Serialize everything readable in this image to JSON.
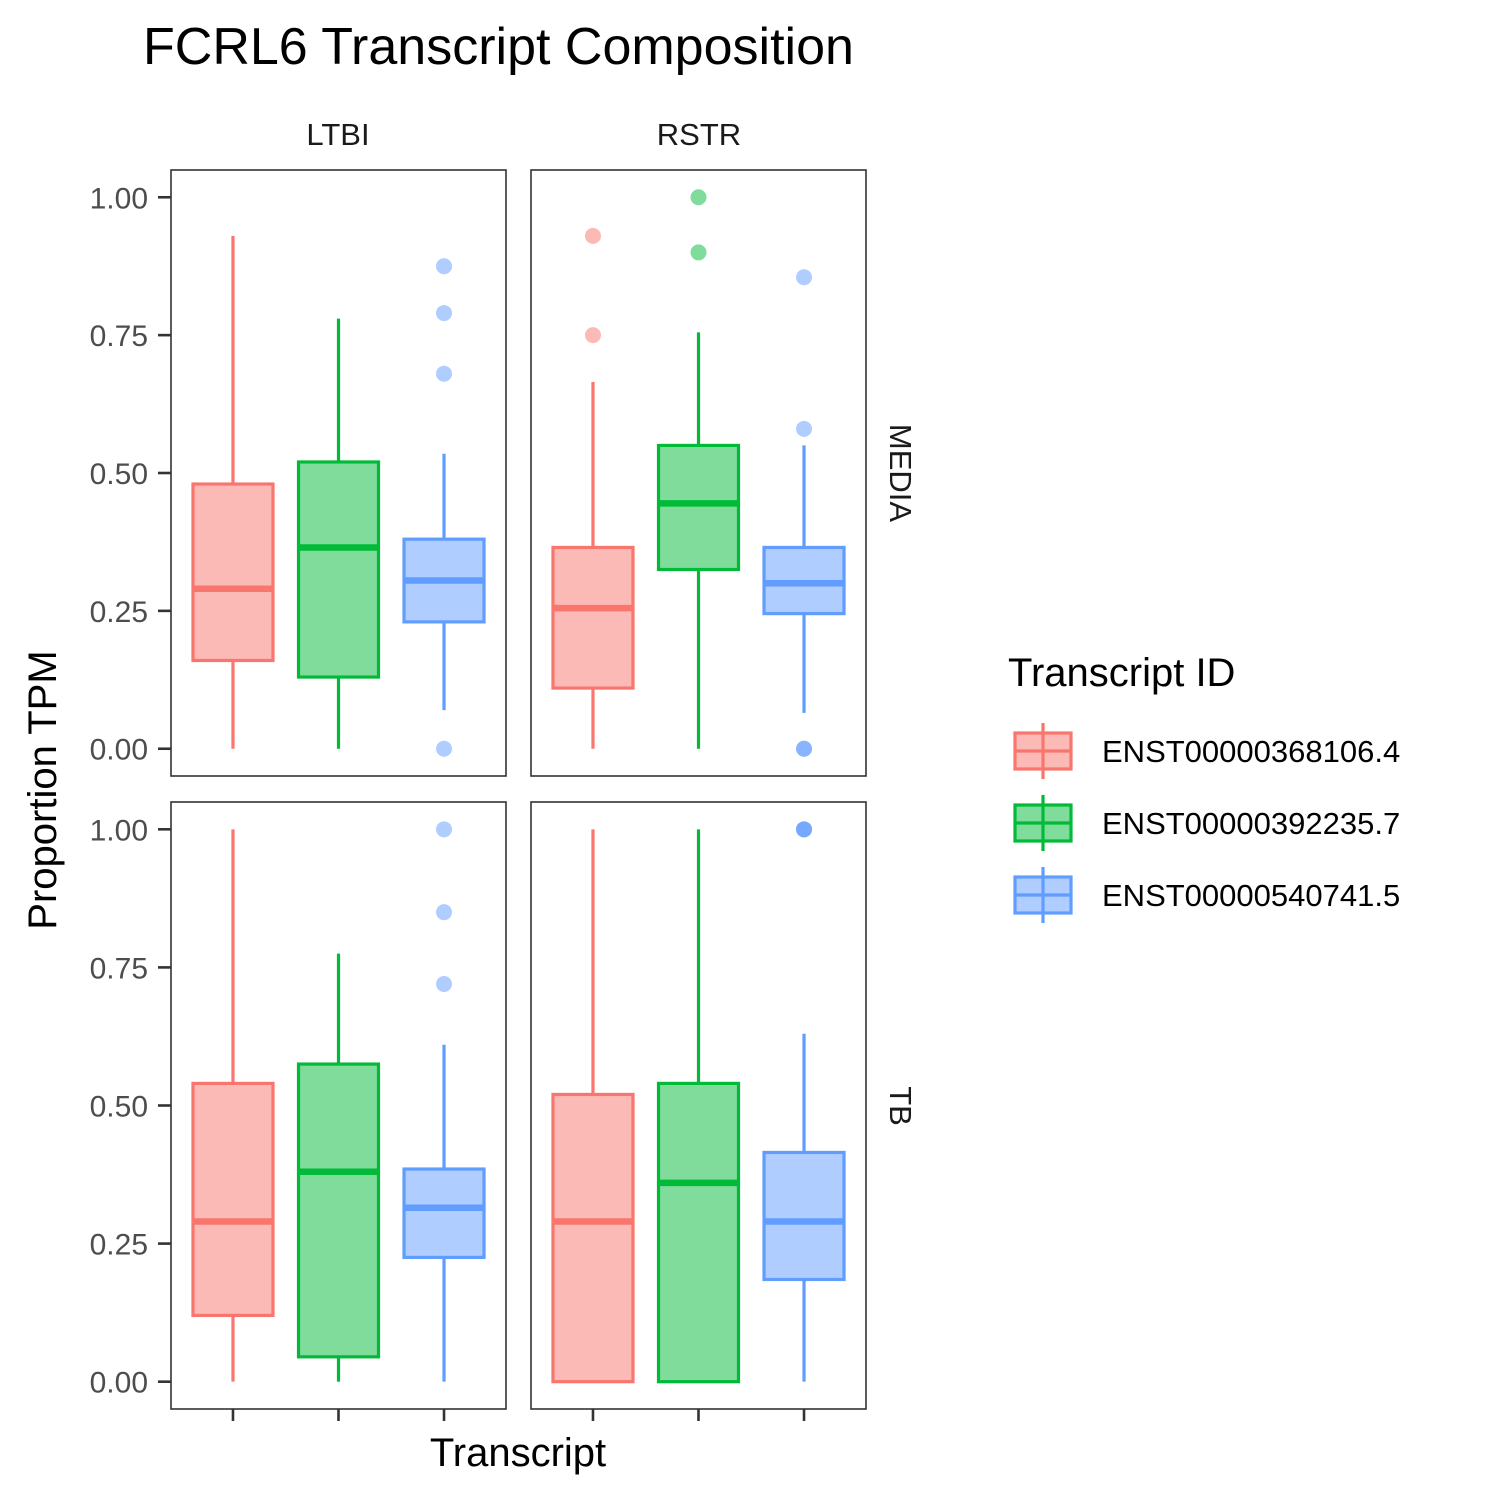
{
  "chart_data": {
    "type": "boxplot",
    "title": "FCRL6 Transcript Composition",
    "xlabel": "Transcript",
    "ylabel": "Proportion TPM",
    "ylim": [
      0,
      1
    ],
    "y_ticks": [
      "0.00",
      "0.25",
      "0.50",
      "0.75",
      "1.00"
    ],
    "facet_columns": [
      "LTBI",
      "RSTR"
    ],
    "facet_rows": [
      "MEDIA",
      "TB"
    ],
    "legend": {
      "title": "Transcript ID",
      "position": "right",
      "items": [
        {
          "label": "ENST00000368106.4",
          "color": "#F8766D"
        },
        {
          "label": "ENST00000392235.7",
          "color": "#00BA38"
        },
        {
          "label": "ENST00000540741.5",
          "color": "#619CFF"
        }
      ]
    },
    "panels": [
      {
        "col": "LTBI",
        "row": "MEDIA",
        "boxes": [
          {
            "transcript": "ENST00000368106.4",
            "min": 0.0,
            "q1": 0.16,
            "median": 0.29,
            "q3": 0.48,
            "max": 0.93,
            "outliers": []
          },
          {
            "transcript": "ENST00000392235.7",
            "min": 0.0,
            "q1": 0.13,
            "median": 0.365,
            "q3": 0.52,
            "max": 0.78,
            "outliers": []
          },
          {
            "transcript": "ENST00000540741.5",
            "min": 0.07,
            "q1": 0.23,
            "median": 0.305,
            "q3": 0.38,
            "max": 0.535,
            "outliers": [
              0.0,
              0.68,
              0.79,
              0.875
            ]
          }
        ]
      },
      {
        "col": "RSTR",
        "row": "MEDIA",
        "boxes": [
          {
            "transcript": "ENST00000368106.4",
            "min": 0.0,
            "q1": 0.11,
            "median": 0.255,
            "q3": 0.365,
            "max": 0.665,
            "outliers": [
              0.75,
              0.93
            ]
          },
          {
            "transcript": "ENST00000392235.7",
            "min": 0.0,
            "q1": 0.325,
            "median": 0.445,
            "q3": 0.55,
            "max": 0.755,
            "outliers": [
              0.9,
              1.0
            ]
          },
          {
            "transcript": "ENST00000540741.5",
            "min": 0.065,
            "q1": 0.245,
            "median": 0.3,
            "q3": 0.365,
            "max": 0.55,
            "outliers": [
              0.0,
              0.0,
              0.58,
              0.855
            ]
          }
        ]
      },
      {
        "col": "LTBI",
        "row": "TB",
        "boxes": [
          {
            "transcript": "ENST00000368106.4",
            "min": 0.0,
            "q1": 0.12,
            "median": 0.29,
            "q3": 0.54,
            "max": 1.0,
            "outliers": []
          },
          {
            "transcript": "ENST00000392235.7",
            "min": 0.0,
            "q1": 0.045,
            "median": 0.38,
            "q3": 0.575,
            "max": 0.775,
            "outliers": []
          },
          {
            "transcript": "ENST00000540741.5",
            "min": 0.0,
            "q1": 0.225,
            "median": 0.315,
            "q3": 0.385,
            "max": 0.61,
            "outliers": [
              0.72,
              0.85,
              1.0
            ]
          }
        ]
      },
      {
        "col": "RSTR",
        "row": "TB",
        "boxes": [
          {
            "transcript": "ENST00000368106.4",
            "min": 0.0,
            "q1": 0.0,
            "median": 0.29,
            "q3": 0.52,
            "max": 1.0,
            "outliers": []
          },
          {
            "transcript": "ENST00000392235.7",
            "min": 0.0,
            "q1": 0.0,
            "median": 0.36,
            "q3": 0.54,
            "max": 1.0,
            "outliers": []
          },
          {
            "transcript": "ENST00000540741.5",
            "min": 0.0,
            "q1": 0.185,
            "median": 0.29,
            "q3": 0.415,
            "max": 0.63,
            "outliers": [
              1.0,
              1.0,
              1.0
            ]
          }
        ]
      }
    ]
  }
}
